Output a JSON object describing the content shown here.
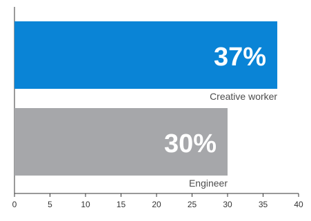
{
  "chart_data": {
    "type": "bar",
    "orientation": "horizontal",
    "categories": [
      "Creative worker",
      "Engineer"
    ],
    "values": [
      37,
      30
    ],
    "value_labels": [
      "37%",
      "30%"
    ],
    "colors": [
      "#0a84d6",
      "#a6a7aa"
    ],
    "xlim": [
      0,
      40
    ],
    "x_ticks": [
      0,
      5,
      10,
      15,
      20,
      25,
      30,
      35,
      40
    ],
    "title": "",
    "xlabel": "",
    "ylabel": "",
    "grid": false,
    "legend": "none"
  }
}
